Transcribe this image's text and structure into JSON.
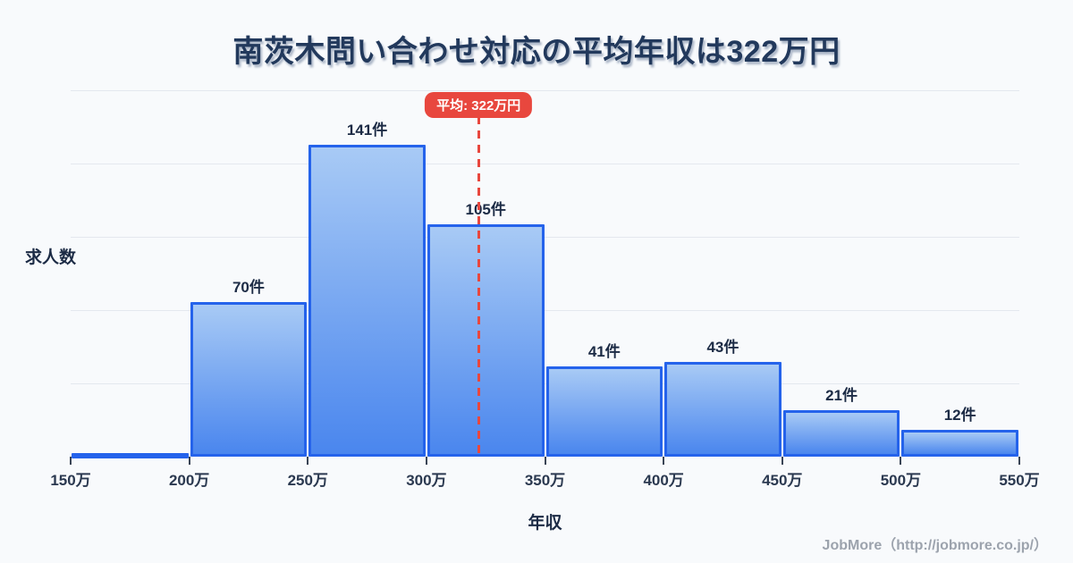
{
  "title": "南茨木問い合わせ対応の平均年収は322万円",
  "footer": {
    "credit": "JobMore（http://jobmore.co.jp/）"
  },
  "colors": {
    "background": "#f8fafc",
    "title_text": "#22395c",
    "gridline": "#e4e8ef",
    "bar_fill_top": "#a8caf5",
    "bar_fill_bottom": "#4a86ee",
    "bar_border": "#2563eb",
    "bar_label_text": "#1c2b45",
    "average_line": "#e8473e",
    "badge_background": "#e8473e",
    "badge_text": "#ffffff",
    "footer_text": "#9ca3ad"
  },
  "chart_data": {
    "type": "bar",
    "subtype": "histogram",
    "title": "南茨木問い合わせ対応の平均年収は322万円",
    "xlabel": "年収",
    "ylabel": "求人数",
    "unit": "件",
    "x_range": [
      150,
      550
    ],
    "bin_width": 50,
    "bin_edges": [
      150,
      200,
      250,
      300,
      350,
      400,
      450,
      500,
      550
    ],
    "bin_edge_labels": [
      "150万",
      "200万",
      "250万",
      "300万",
      "350万",
      "400万",
      "450万",
      "500万",
      "550万"
    ],
    "values": [
      1,
      70,
      141,
      105,
      41,
      43,
      21,
      12
    ],
    "bar_labels": [
      "",
      "70件",
      "141件",
      "105件",
      "41件",
      "43件",
      "21件",
      "12件"
    ],
    "average": {
      "value": 322,
      "label": "平均: 322万円"
    },
    "grid": true,
    "legend": false
  }
}
